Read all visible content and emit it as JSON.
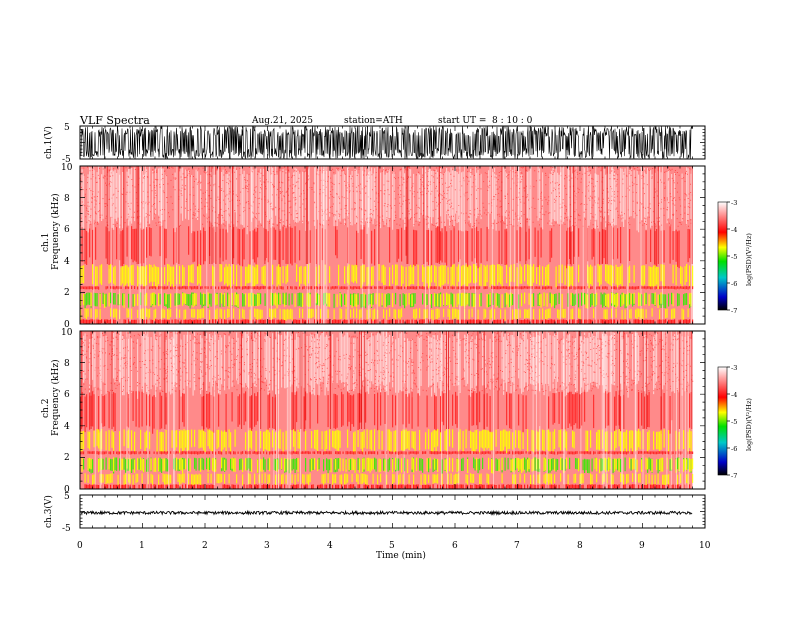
{
  "header": {
    "title": "VLF  Spectra",
    "date": "Aug.21, 2025",
    "station": "station=ATH",
    "start_label": "start  UT  =",
    "start_time": "8  : 10 : 0"
  },
  "chart_data": [
    {
      "type": "line",
      "name": "ch1-waveform",
      "ylabel": "ch.1(V)",
      "ylim": [
        -5,
        5
      ],
      "yticks": [
        "5",
        "-5"
      ],
      "xlim": [
        0,
        10
      ],
      "data_end": 9.8,
      "amplitude": 5
    },
    {
      "type": "heatmap",
      "name": "ch1-spectrogram",
      "ylabel": "ch.1",
      "ylabel2": "Frequency  (kHz)",
      "ylim": [
        0,
        10
      ],
      "yticks": [
        "0",
        "2",
        "4",
        "6",
        "8",
        "10"
      ],
      "xlim": [
        0,
        10
      ],
      "data_end": 9.8,
      "colorbar": {
        "label": "log(PSD)(V²/Hz)",
        "range": [
          -7,
          -3
        ],
        "ticks": [
          "-3",
          "-4",
          "-5",
          "-6",
          "-7"
        ]
      }
    },
    {
      "type": "heatmap",
      "name": "ch2-spectrogram",
      "ylabel": "ch.2",
      "ylabel2": "Frequency  (kHz)",
      "ylim": [
        0,
        10
      ],
      "yticks": [
        "0",
        "2",
        "4",
        "6",
        "8",
        "10"
      ],
      "xlim": [
        0,
        10
      ],
      "data_end": 9.8,
      "colorbar": {
        "label": "log(PSD)(V²/Hz)",
        "range": [
          -7,
          -3
        ],
        "ticks": [
          "-3",
          "-4",
          "-5",
          "-6",
          "-7"
        ]
      }
    },
    {
      "type": "line",
      "name": "ch3-waveform",
      "ylabel": "ch.3(V)",
      "ylim": [
        -5,
        5
      ],
      "yticks": [
        "5",
        "0",
        "-5"
      ],
      "xlim": [
        0,
        10
      ],
      "data_end": 9.8,
      "level": -0.4
    }
  ],
  "xaxis": {
    "label": "Time  (min)",
    "ticks": [
      "0",
      "1",
      "2",
      "3",
      "4",
      "5",
      "6",
      "7",
      "8",
      "9",
      "10"
    ]
  },
  "colors": {
    "spectrogram_base": "#ff2a2a",
    "colormap": [
      "#000000",
      "#0000c8",
      "#00c8c8",
      "#00e000",
      "#ffff00",
      "#ff0000",
      "#ffffff"
    ]
  }
}
